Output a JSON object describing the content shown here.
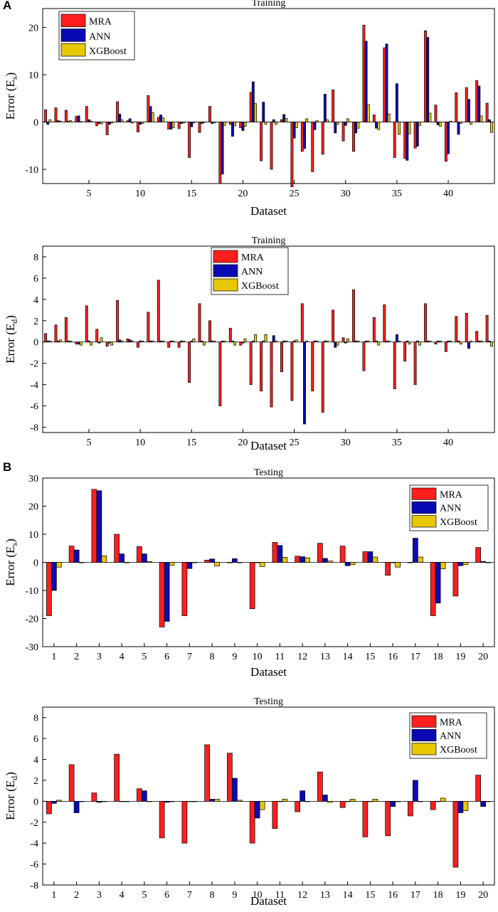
{
  "panels": [
    {
      "letter": "A"
    },
    {
      "letter": "B"
    }
  ],
  "chart_data": [
    {
      "type": "bar",
      "title": "Training",
      "xlabel": "Dataset",
      "ylabel": "Error (Es)",
      "ylabel_main": "Error (E",
      "ylabel_sub": "s",
      "ylabel_close": ")",
      "xlim": [
        0.5,
        44.5
      ],
      "ylim": [
        -13,
        24
      ],
      "xticks": [
        5,
        10,
        15,
        20,
        25,
        30,
        35,
        40
      ],
      "yticks": [
        -10,
        0,
        10,
        20
      ],
      "legend_position": "top-left",
      "x": [
        1,
        2,
        3,
        4,
        5,
        6,
        7,
        8,
        9,
        10,
        11,
        12,
        13,
        14,
        15,
        16,
        17,
        18,
        19,
        20,
        21,
        22,
        23,
        24,
        25,
        26,
        27,
        28,
        29,
        30,
        31,
        32,
        33,
        34,
        35,
        36,
        37,
        38,
        39,
        40,
        41,
        42,
        43,
        44
      ],
      "series": [
        {
          "name": "MRA",
          "color": "#ff1f1f",
          "values": [
            2.6,
            3.0,
            2.5,
            1.2,
            3.3,
            -0.8,
            -2.7,
            4.3,
            0.3,
            -2.1,
            5.6,
            1.0,
            -1.5,
            -1.4,
            -7.5,
            -2.2,
            3.3,
            -13.0,
            -0.5,
            -1.2,
            6.3,
            -8.2,
            -10.0,
            0.5,
            -13.7,
            -6.2,
            -10.5,
            -6.8,
            6.8,
            -4.0,
            -6.2,
            20.5,
            1.5,
            15.7,
            -7.5,
            -7.7,
            -5.5,
            19.3,
            3.6,
            -8.3,
            6.2,
            7.3,
            8.8,
            4.0
          ]
        },
        {
          "name": "ANN",
          "color": "#0a0ab4",
          "values": [
            -0.5,
            0.3,
            0.2,
            1.3,
            0.5,
            -0.3,
            -0.5,
            1.7,
            0.7,
            -0.5,
            3.3,
            1.5,
            -1.5,
            -0.3,
            -1.0,
            -0.3,
            -0.3,
            -11.0,
            -3.0,
            -1.8,
            8.5,
            4.2,
            0.5,
            1.6,
            -3.4,
            -5.6,
            -1.6,
            5.9,
            -2.3,
            -0.7,
            -2.3,
            17.1,
            -1.3,
            16.5,
            8.1,
            -8.1,
            -5.1,
            17.9,
            -0.6,
            -6.7,
            -2.6,
            4.8,
            7.6,
            0.5
          ]
        },
        {
          "name": "XGBoost",
          "color": "#e8c800",
          "values": [
            0.5,
            0.2,
            0.3,
            0.1,
            0.2,
            -0.4,
            -0.2,
            0.5,
            -0.2,
            -0.3,
            2.0,
            0.9,
            -1.2,
            -0.2,
            -0.2,
            -0.1,
            -0.2,
            -0.7,
            -0.8,
            -0.9,
            3.9,
            -0.5,
            -0.5,
            0.8,
            -1.2,
            0.7,
            0.3,
            0.5,
            -0.5,
            0.7,
            -1.3,
            3.7,
            -1.6,
            1.7,
            -2.6,
            -2.5,
            -0.7,
            1.9,
            -0.9,
            0.2,
            -0.3,
            -0.5,
            1.3,
            -2.2
          ]
        }
      ]
    },
    {
      "type": "bar",
      "title": "Training",
      "xlabel": "Dataset",
      "ylabel": "Error (Ed)",
      "ylabel_main": "Error (E",
      "ylabel_sub": "d",
      "ylabel_close": ")",
      "xlim": [
        0.5,
        44.5
      ],
      "ylim": [
        -8.5,
        9
      ],
      "xticks": [
        5,
        10,
        15,
        20,
        25,
        30,
        35,
        40
      ],
      "yticks": [
        -8,
        -6,
        -4,
        -2,
        0,
        2,
        4,
        6,
        8
      ],
      "legend_position": "top-center",
      "x": [
        1,
        2,
        3,
        4,
        5,
        6,
        7,
        8,
        9,
        10,
        11,
        12,
        13,
        14,
        15,
        16,
        17,
        18,
        19,
        20,
        21,
        22,
        23,
        24,
        25,
        26,
        27,
        28,
        29,
        30,
        31,
        32,
        33,
        34,
        35,
        36,
        37,
        38,
        39,
        40,
        41,
        42,
        43,
        44
      ],
      "series": [
        {
          "name": "MRA",
          "color": "#ff1f1f",
          "values": [
            0.8,
            1.6,
            2.3,
            -0.2,
            3.4,
            1.2,
            -0.4,
            3.9,
            0.3,
            -0.5,
            2.8,
            5.8,
            -0.5,
            -0.5,
            -3.8,
            3.6,
            2.0,
            -6.0,
            1.3,
            -0.3,
            -4.0,
            -4.6,
            -6.1,
            -2.8,
            -5.5,
            3.6,
            -4.6,
            -6.6,
            3.0,
            0.4,
            4.9,
            -2.7,
            2.3,
            3.5,
            -4.4,
            -1.8,
            -4.0,
            3.6,
            -0.2,
            -0.9,
            2.4,
            2.7,
            1.0,
            2.5
          ]
        },
        {
          "name": "ANN",
          "color": "#0a0ab4",
          "values": [
            0.1,
            0.1,
            0.1,
            -0.2,
            0.1,
            -0.1,
            -0.1,
            0.2,
            0.2,
            0.1,
            0.1,
            0.1,
            0.1,
            0.1,
            0.1,
            0.1,
            0.1,
            0.1,
            0.1,
            -0.1,
            0.1,
            0.1,
            0.6,
            0.1,
            0.1,
            -7.7,
            0.1,
            0.1,
            -0.5,
            -0.1,
            0.1,
            0.1,
            0.1,
            0.1,
            0.7,
            0.1,
            0.1,
            0.1,
            0.1,
            0.1,
            0.1,
            -0.6,
            0.1,
            0.1
          ]
        },
        {
          "name": "XGBoost",
          "color": "#e8c800",
          "values": [
            0.1,
            0.2,
            0.1,
            -0.3,
            -0.3,
            0.4,
            -0.3,
            0.1,
            0.1,
            0.1,
            0.1,
            0.1,
            0.1,
            0.1,
            0.3,
            -0.3,
            0.1,
            0.1,
            -0.3,
            0.3,
            0.7,
            0.7,
            0.1,
            0.1,
            0.2,
            0.1,
            0.1,
            0.1,
            -0.3,
            0.3,
            0.1,
            0.1,
            -0.3,
            0.1,
            0.1,
            -0.2,
            -0.3,
            0.1,
            0.1,
            0.1,
            -0.2,
            0.1,
            0.1,
            -0.4
          ]
        }
      ]
    },
    {
      "type": "bar",
      "title": "Testing",
      "xlabel": "Dataset",
      "ylabel": "Error (Es)",
      "ylabel_main": "Error (E",
      "ylabel_sub": "s",
      "ylabel_close": ")",
      "xlim": [
        0.5,
        20.5
      ],
      "ylim": [
        -30,
        30
      ],
      "xticks": [
        1,
        2,
        3,
        4,
        5,
        6,
        7,
        8,
        9,
        10,
        11,
        12,
        13,
        14,
        15,
        16,
        17,
        18,
        19,
        20
      ],
      "yticks": [
        -30,
        -20,
        -10,
        0,
        10,
        20,
        30
      ],
      "legend_position": "top-right",
      "x": [
        1,
        2,
        3,
        4,
        5,
        6,
        7,
        8,
        9,
        10,
        11,
        12,
        13,
        14,
        15,
        16,
        17,
        18,
        19,
        20
      ],
      "series": [
        {
          "name": "MRA",
          "color": "#ff1f1f",
          "values": [
            -19.0,
            5.8,
            26.0,
            10.0,
            5.6,
            -23.0,
            -19.0,
            0.8,
            0.0,
            -16.5,
            7.1,
            2.2,
            6.8,
            5.8,
            3.8,
            -4.6,
            0.0,
            -19.0,
            -12.0,
            5.3
          ]
        },
        {
          "name": "ANN",
          "color": "#0a0ab4",
          "values": [
            -10.0,
            4.4,
            25.5,
            3.0,
            3.0,
            -21.0,
            -2.2,
            1.2,
            1.3,
            0.0,
            6.0,
            2.0,
            1.4,
            -1.2,
            3.8,
            0.0,
            8.6,
            -14.5,
            -1.2,
            0.3
          ]
        },
        {
          "name": "XGBoost",
          "color": "#e8c800",
          "values": [
            -1.7,
            0.0,
            2.3,
            0.0,
            0.3,
            -1.0,
            0.0,
            -1.3,
            0.0,
            -1.5,
            1.8,
            1.6,
            0.5,
            -0.8,
            1.9,
            -1.7,
            1.9,
            -2.3,
            -0.8,
            0.0
          ]
        }
      ]
    },
    {
      "type": "bar",
      "title": "Testing",
      "xlabel": "Dataset",
      "ylabel": "Error (Ed)",
      "ylabel_main": "Error (E",
      "ylabel_sub": "d",
      "ylabel_close": ")",
      "xlim": [
        0.5,
        20.5
      ],
      "ylim": [
        -8,
        9
      ],
      "xticks": [
        1,
        2,
        3,
        4,
        5,
        6,
        7,
        8,
        9,
        10,
        11,
        12,
        13,
        14,
        15,
        16,
        17,
        18,
        19,
        20
      ],
      "yticks": [
        -8,
        -6,
        -4,
        -2,
        0,
        2,
        4,
        6,
        8
      ],
      "legend_position": "top-right",
      "x": [
        1,
        2,
        3,
        4,
        5,
        6,
        7,
        8,
        9,
        10,
        11,
        12,
        13,
        14,
        15,
        16,
        17,
        18,
        19,
        20
      ],
      "series": [
        {
          "name": "MRA",
          "color": "#ff1f1f",
          "values": [
            -1.2,
            3.5,
            0.8,
            4.5,
            1.2,
            -3.5,
            -4.0,
            5.4,
            4.6,
            -4.0,
            -2.6,
            -1.0,
            2.8,
            -0.6,
            -3.4,
            -3.3,
            -1.4,
            -0.8,
            -6.3,
            2.5
          ]
        },
        {
          "name": "ANN",
          "color": "#0a0ab4",
          "values": [
            -0.2,
            -1.1,
            -0.1,
            0.0,
            1.0,
            -0.1,
            0.0,
            0.2,
            2.2,
            -1.6,
            0.0,
            1.0,
            0.6,
            0.0,
            0.0,
            -0.5,
            2.0,
            0.0,
            -1.1,
            -0.5
          ]
        },
        {
          "name": "XGBoost",
          "color": "#e8c800",
          "values": [
            0.1,
            0.0,
            0.0,
            0.0,
            0.0,
            0.0,
            0.0,
            0.2,
            0.1,
            -0.8,
            0.2,
            0.0,
            -0.1,
            0.2,
            0.2,
            0.0,
            0.0,
            0.3,
            -0.9,
            0.0
          ]
        }
      ]
    }
  ]
}
